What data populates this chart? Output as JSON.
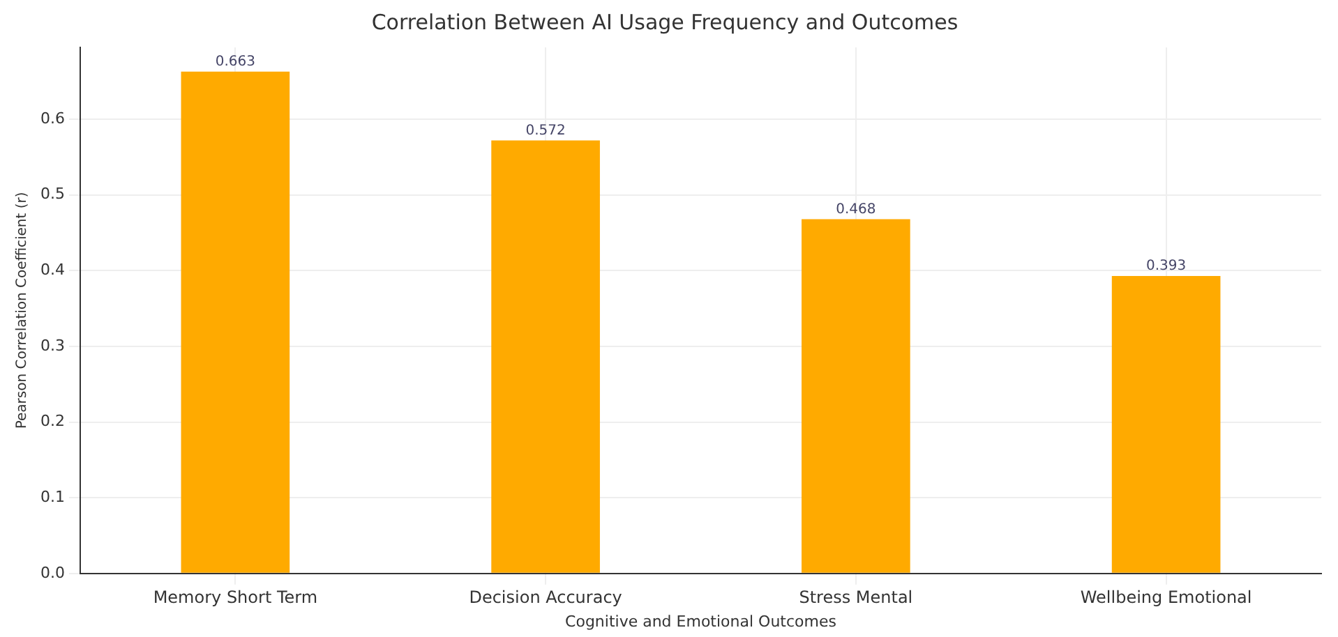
{
  "chart_data": {
    "type": "bar",
    "title": "Correlation Between AI Usage Frequency and Outcomes",
    "xlabel": "Cognitive and Emotional Outcomes",
    "ylabel": "Pearson Correlation Coefficient (r)",
    "categories": [
      "Memory Short Term",
      "Decision Accuracy",
      "Stress Mental",
      "Wellbeing Emotional"
    ],
    "values": [
      0.663,
      0.572,
      0.468,
      0.393
    ],
    "color": "#ffaa00",
    "ylim": [
      0,
      0.695
    ],
    "yticks": [
      {
        "value": 0,
        "label": "0.0"
      },
      0.1,
      0.2,
      0.3,
      0.4,
      0.5,
      0.6
    ],
    "grid": true,
    "data_labels": true
  }
}
